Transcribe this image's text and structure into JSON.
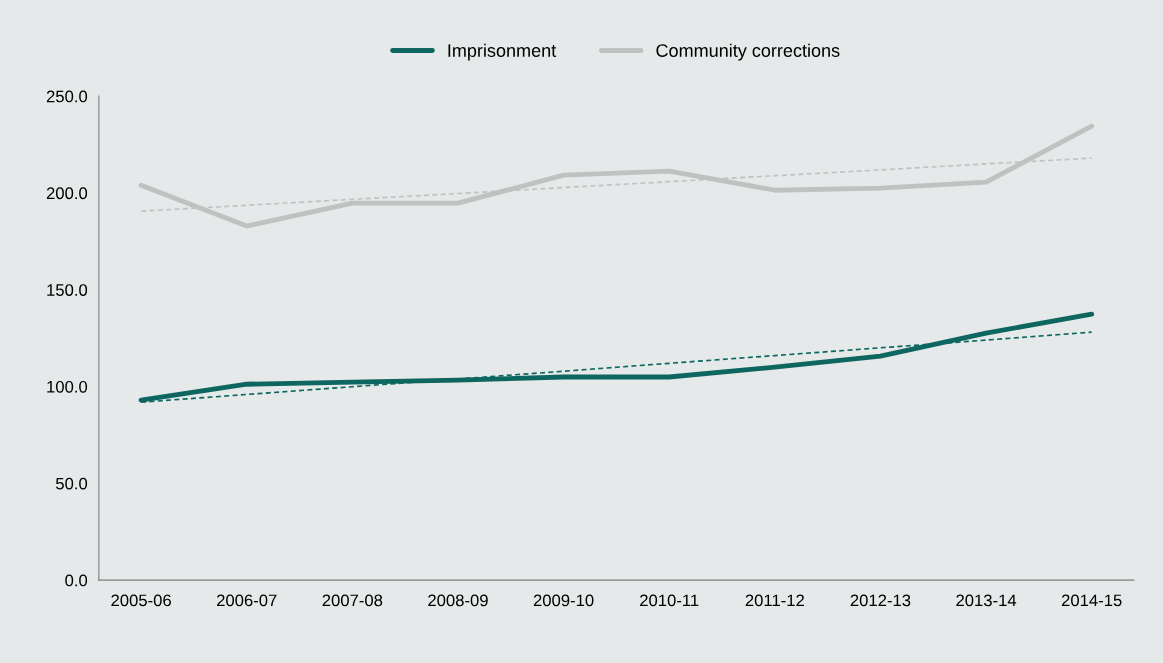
{
  "chart_data": {
    "type": "line",
    "categories": [
      "2005-06",
      "2006-07",
      "2007-08",
      "2008-09",
      "2009-10",
      "2010-11",
      "2011-12",
      "2012-13",
      "2013-14",
      "2014-15"
    ],
    "series": [
      {
        "name": "Imprisonment",
        "color": "#0e6660",
        "values": [
          93.0,
          101.2,
          102.3,
          103.3,
          104.9,
          104.9,
          110.0,
          115.7,
          127.6,
          137.4
        ]
      },
      {
        "name": "Community corrections",
        "color": "#c0c2c2",
        "values": [
          204.0,
          182.9,
          194.7,
          194.7,
          209.2,
          211.3,
          201.4,
          202.5,
          205.6,
          234.5
        ]
      },
      {
        "color": "#0e6660",
        "line_style": "dashed",
        "values": [
          91.9,
          95.9,
          99.9,
          103.9,
          107.9,
          112.0,
          116.0,
          120.0,
          124.0,
          128.1
        ]
      },
      {
        "color": "#c0c2c2",
        "line_style": "dashed",
        "values": [
          190.6,
          193.6,
          196.7,
          199.7,
          202.8,
          205.8,
          208.9,
          211.9,
          215.0,
          218.0
        ]
      }
    ],
    "ylim": [
      0,
      250
    ],
    "yticks": [
      {
        "value": 0,
        "label": "0.0"
      },
      {
        "value": 50,
        "label": "50.0"
      },
      {
        "value": 100,
        "label": "100.0"
      },
      {
        "value": 150,
        "label": "150.0"
      },
      {
        "value": 200,
        "label": "200.0"
      },
      {
        "value": 250,
        "label": "250.0"
      }
    ],
    "grid": false,
    "legend": "top",
    "marker": "none"
  }
}
